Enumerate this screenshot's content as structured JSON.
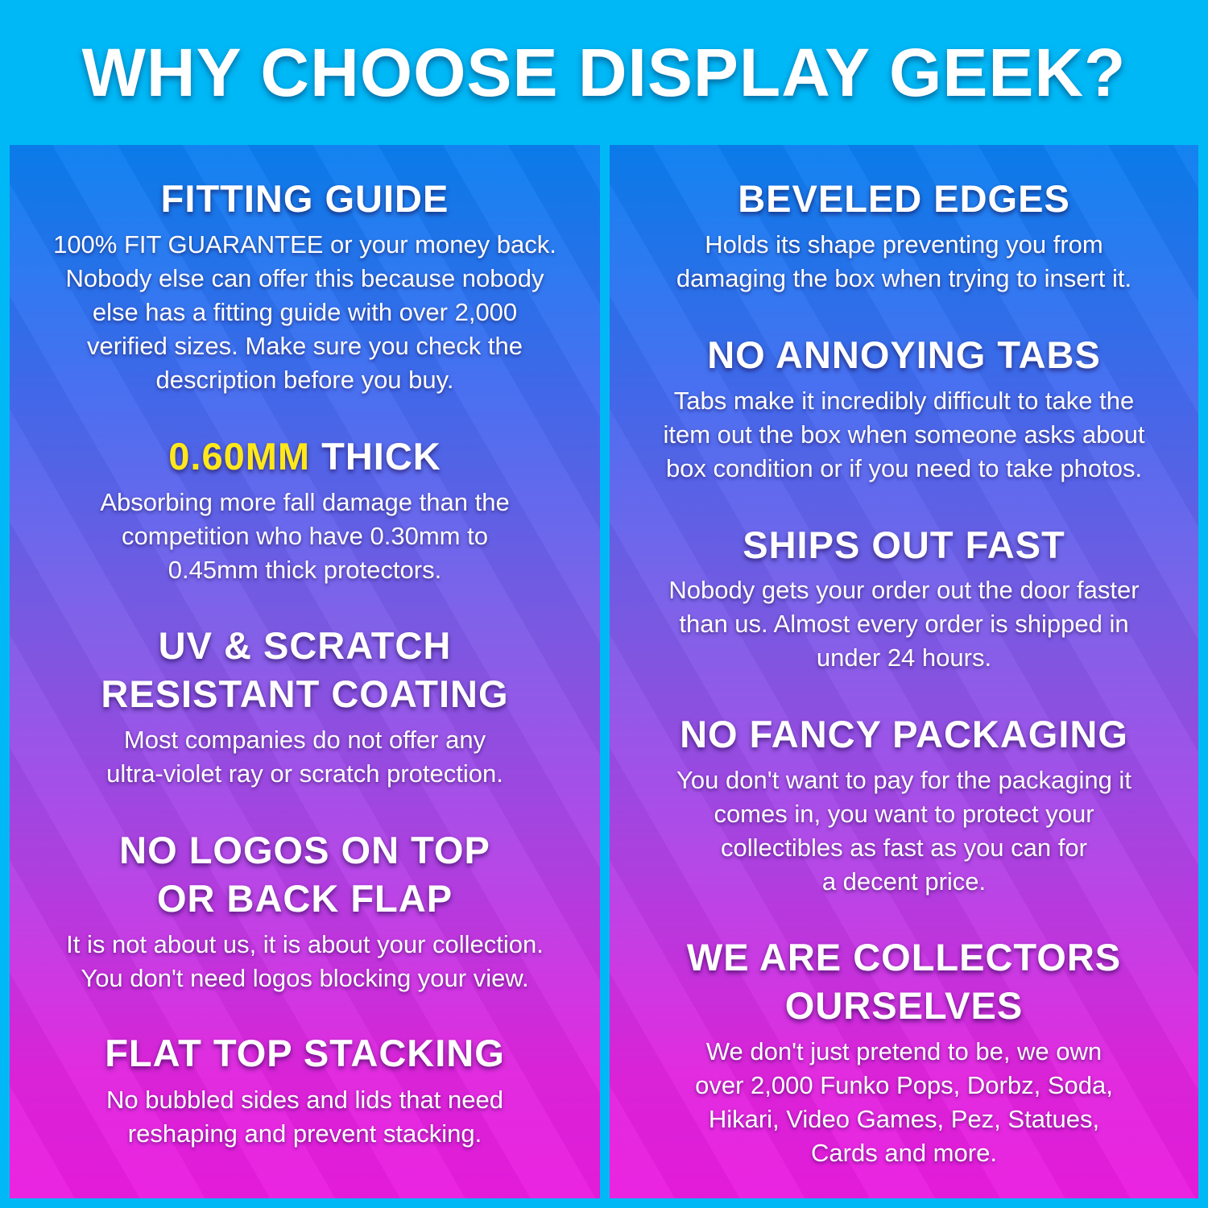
{
  "title": "WHY CHOOSE DISPLAY GEEK?",
  "colors": {
    "background": "#00b8f6",
    "highlight": "#ffe81a",
    "panel_top": "#0a7ff0",
    "panel_bottom": "#ea1ce0"
  },
  "left": [
    {
      "heading": "FITTING GUIDE",
      "body": "100% FIT GUARANTEE or your money back.\nNobody else can offer this because nobody\nelse has a fitting guide with over 2,000\nverified sizes. Make sure you check the\ndescription before you buy."
    },
    {
      "heading_highlight": "0.60MM",
      "heading": "THICK",
      "body": "Absorbing more fall damage than the\ncompetition who have 0.30mm to\n0.45mm thick protectors."
    },
    {
      "heading": "UV & SCRATCH\nRESISTANT COATING",
      "body": "Most companies do not offer any\nultra-violet ray or scratch protection."
    },
    {
      "heading": "NO LOGOS ON TOP\nOR BACK FLAP",
      "body": "It is not about us, it is about your collection.\nYou don't need logos blocking your view."
    },
    {
      "heading": "FLAT TOP STACKING",
      "body": "No bubbled sides and lids that need\nreshaping and prevent stacking."
    }
  ],
  "right": [
    {
      "heading": "BEVELED EDGES",
      "body": "Holds its shape preventing you from\ndamaging the box when trying to insert it."
    },
    {
      "heading": "NO ANNOYING TABS",
      "body": "Tabs make it incredibly difficult to take the\nitem out the box when someone asks about\nbox condition or if you need to take photos."
    },
    {
      "heading": "SHIPS OUT FAST",
      "body": "Nobody gets your order out the door faster\nthan us. Almost every order is shipped in\nunder 24 hours."
    },
    {
      "heading": "NO FANCY PACKAGING",
      "body": "You don't want to pay for the packaging it\ncomes in, you want to protect your\ncollectibles as fast as you can for\na decent price."
    },
    {
      "heading": "WE ARE COLLECTORS\nOURSELVES",
      "body": "We don't just pretend to be, we own\nover 2,000 Funko Pops, Dorbz, Soda,\nHikari, Video Games, Pez, Statues,\nCards and more."
    }
  ]
}
